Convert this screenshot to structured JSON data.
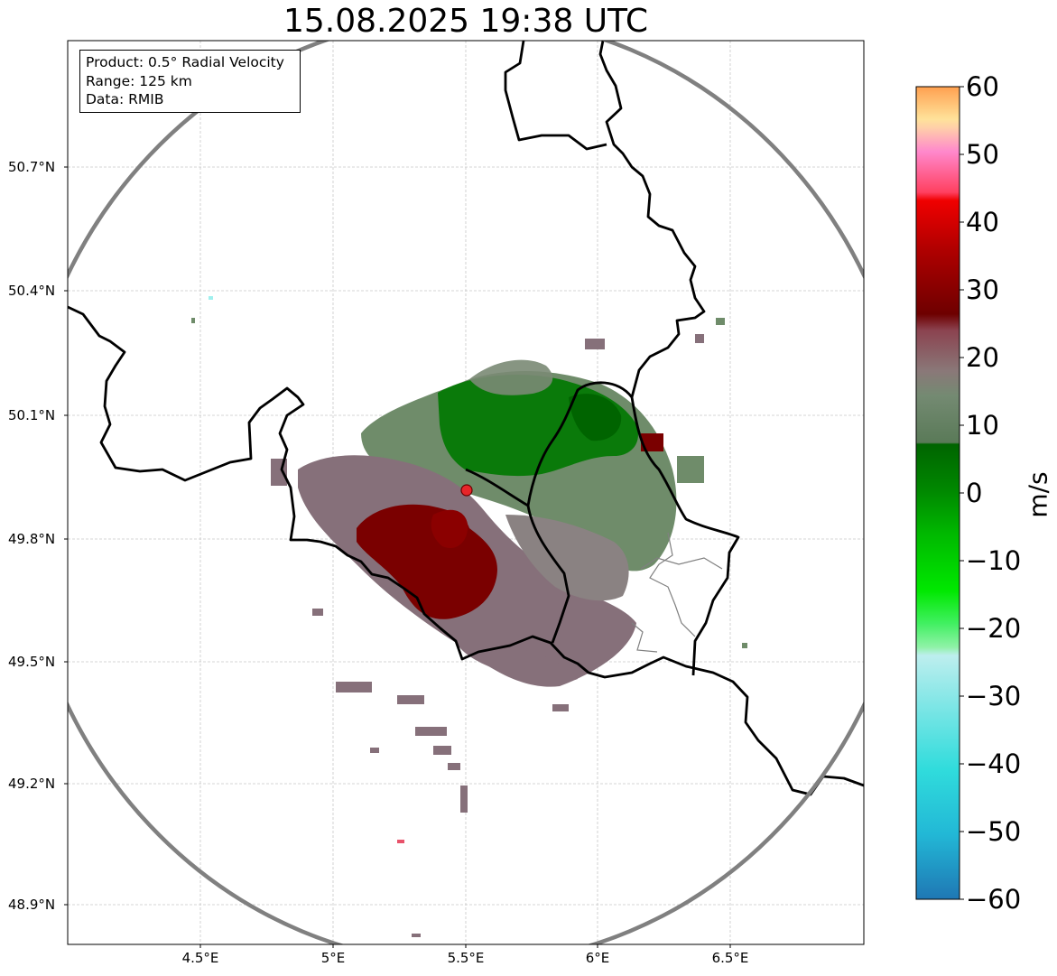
{
  "title": "15.08.2025 19:38 UTC",
  "info": {
    "product": "Product: 0.5° Radial Velocity",
    "range": "Range: 125 km",
    "source": "Data: RMIB"
  },
  "axes": {
    "lat_ticks": [
      "50.7°N",
      "50.4°N",
      "50.1°N",
      "49.8°N",
      "49.5°N",
      "49.2°N",
      "48.9°N"
    ],
    "lon_ticks": [
      "4.5°E",
      "5°E",
      "5.5°E",
      "6°E",
      "6.5°E"
    ]
  },
  "colorbar": {
    "unit": "m/s",
    "min": -60,
    "max": 60,
    "ticks": [
      "60",
      "50",
      "40",
      "30",
      "20",
      "10",
      "0",
      "−10",
      "−20",
      "−30",
      "−40",
      "−50",
      "−60"
    ]
  },
  "radar": {
    "site": "radar site",
    "range_ring_km": 125,
    "colors": {
      "outbound_strong": "#7a0000",
      "outbound_weak": "#86707a",
      "neutral": "#6f8c6a",
      "inbound_weak": "#5f7d5a",
      "inbound_strong": "#006b00",
      "site_marker": "#e8262a",
      "ring": "#808080"
    }
  }
}
